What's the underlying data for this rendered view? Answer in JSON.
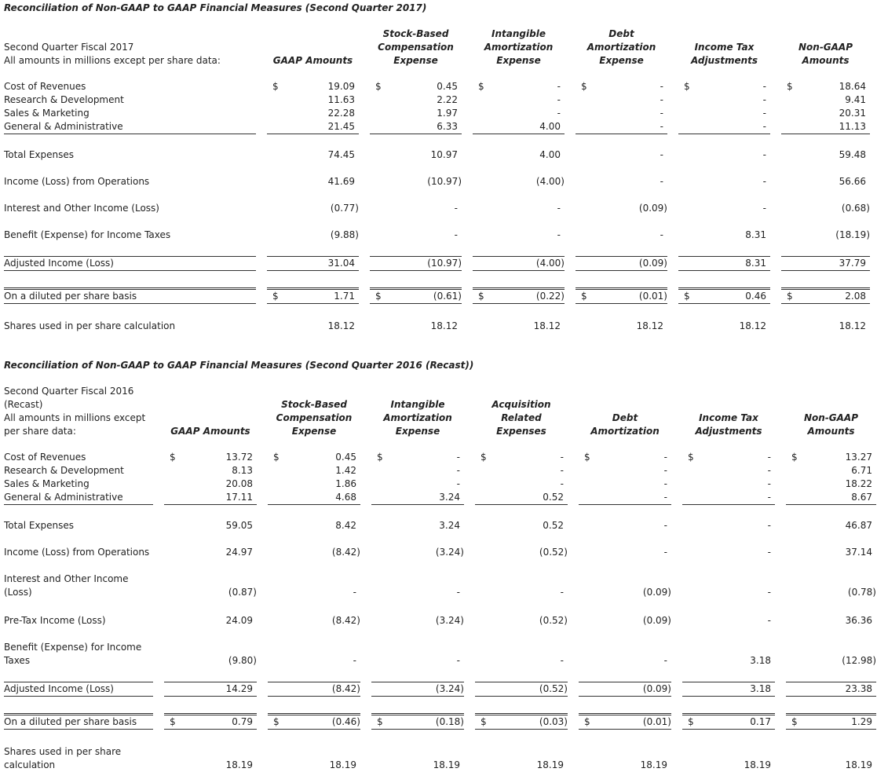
{
  "tables": [
    {
      "title": "Reconciliation of Non-GAAP to GAAP Financial Measures (Second Quarter 2017)",
      "header": {
        "label_lines": [
          "Second Quarter Fiscal 2017",
          "All amounts in millions except per share data:"
        ],
        "columns": [
          "GAAP Amounts",
          "Stock-Based Compensation Expense",
          "Intangible Amortization Expense",
          "Debt Amortization Expense",
          "Income Tax Adjustments",
          "Non-GAAP Amounts"
        ]
      },
      "rows": [
        {
          "label": "Cost of Revenues",
          "prefix": "$",
          "cells": [
            "19.09",
            "0.45",
            "-",
            "-",
            "-",
            "18.64"
          ]
        },
        {
          "label": "Research & Development",
          "cells": [
            "11.63",
            "2.22",
            "-",
            "-",
            "-",
            "9.41"
          ]
        },
        {
          "label": "Sales & Marketing",
          "cells": [
            "22.28",
            "1.97",
            "-",
            "-",
            "-",
            "20.31"
          ]
        },
        {
          "label": "General & Administrative",
          "cells": [
            "21.45",
            "6.33",
            "4.00",
            "-",
            "-",
            "11.13"
          ]
        },
        {
          "label": "Total Expenses",
          "cells": [
            "74.45",
            "10.97",
            "4.00",
            "-",
            "-",
            "59.48"
          ]
        },
        {
          "label": "Income (Loss) from Operations",
          "cells": [
            "41.69",
            "(10.97)",
            "(4.00)",
            "-",
            "-",
            "56.66"
          ]
        },
        {
          "label": "Interest and Other Income (Loss)",
          "cells": [
            "(0.77)",
            "-",
            "-",
            "(0.09)",
            "-",
            "(0.68)"
          ]
        },
        {
          "label": "Benefit (Expense) for Income Taxes",
          "cells": [
            "(9.88)",
            "-",
            "-",
            "-",
            "8.31",
            "(18.19)"
          ]
        },
        {
          "label": "Adjusted Income (Loss)",
          "cells": [
            "31.04",
            "(10.97)",
            "(4.00)",
            "(0.09)",
            "8.31",
            "37.79"
          ]
        },
        {
          "label": "On a diluted per share basis",
          "prefix": "$",
          "cells": [
            "1.71",
            "(0.61)",
            "(0.22)",
            "(0.01)",
            "0.46",
            "2.08"
          ]
        },
        {
          "label": "Shares used in per share calculation",
          "cells": [
            "18.12",
            "18.12",
            "18.12",
            "18.12",
            "18.12",
            "18.12"
          ]
        }
      ]
    },
    {
      "title": "Reconciliation of Non-GAAP to GAAP Financial Measures (Second Quarter 2016 (Recast))",
      "header": {
        "label_lines": [
          "Second Quarter Fiscal 2016 (Recast)",
          "All amounts in millions except per share data:"
        ],
        "columns": [
          "GAAP Amounts",
          "Stock-Based Compensation Expense",
          "Intangible Amortization Expense",
          "Acquisition Related Expenses",
          "Debt Amortization",
          "Income Tax Adjustments",
          "Non-GAAP Amounts"
        ]
      },
      "rows": [
        {
          "label": "Cost of Revenues",
          "prefix": "$",
          "cells": [
            "13.72",
            "0.45",
            "-",
            "-",
            "-",
            "-",
            "13.27"
          ]
        },
        {
          "label": "Research & Development",
          "cells": [
            "8.13",
            "1.42",
            "-",
            "-",
            "-",
            "-",
            "6.71"
          ]
        },
        {
          "label": "Sales & Marketing",
          "cells": [
            "20.08",
            "1.86",
            "-",
            "-",
            "-",
            "-",
            "18.22"
          ]
        },
        {
          "label": "General & Administrative",
          "cells": [
            "17.11",
            "4.68",
            "3.24",
            "0.52",
            "-",
            "-",
            "8.67"
          ]
        },
        {
          "label": "Total Expenses",
          "cells": [
            "59.05",
            "8.42",
            "3.24",
            "0.52",
            "-",
            "-",
            "46.87"
          ]
        },
        {
          "label": "Income (Loss) from Operations",
          "cells": [
            "24.97",
            "(8.42)",
            "(3.24)",
            "(0.52)",
            "-",
            "-",
            "37.14"
          ]
        },
        {
          "label": "Interest and Other Income (Loss)",
          "cells": [
            "(0.87)",
            "-",
            "-",
            "-",
            "(0.09)",
            "-",
            "(0.78)"
          ]
        },
        {
          "label": "Pre-Tax Income (Loss)",
          "cells": [
            "24.09",
            "(8.42)",
            "(3.24)",
            "(0.52)",
            "(0.09)",
            "-",
            "36.36"
          ]
        },
        {
          "label": "Benefit (Expense) for Income Taxes",
          "cells": [
            "(9.80)",
            "-",
            "-",
            "-",
            "-",
            "3.18",
            "(12.98)"
          ]
        },
        {
          "label": "Adjusted Income (Loss)",
          "cells": [
            "14.29",
            "(8.42)",
            "(3.24)",
            "(0.52)",
            "(0.09)",
            "3.18",
            "23.38"
          ]
        },
        {
          "label": "On a diluted per share basis",
          "prefix": "$",
          "cells": [
            "0.79",
            "(0.46)",
            "(0.18)",
            "(0.03)",
            "(0.01)",
            "0.17",
            "1.29"
          ]
        },
        {
          "label": "Shares used in per share calculation",
          "cells": [
            "18.19",
            "18.19",
            "18.19",
            "18.19",
            "18.19",
            "18.19",
            "18.19"
          ]
        }
      ]
    }
  ]
}
